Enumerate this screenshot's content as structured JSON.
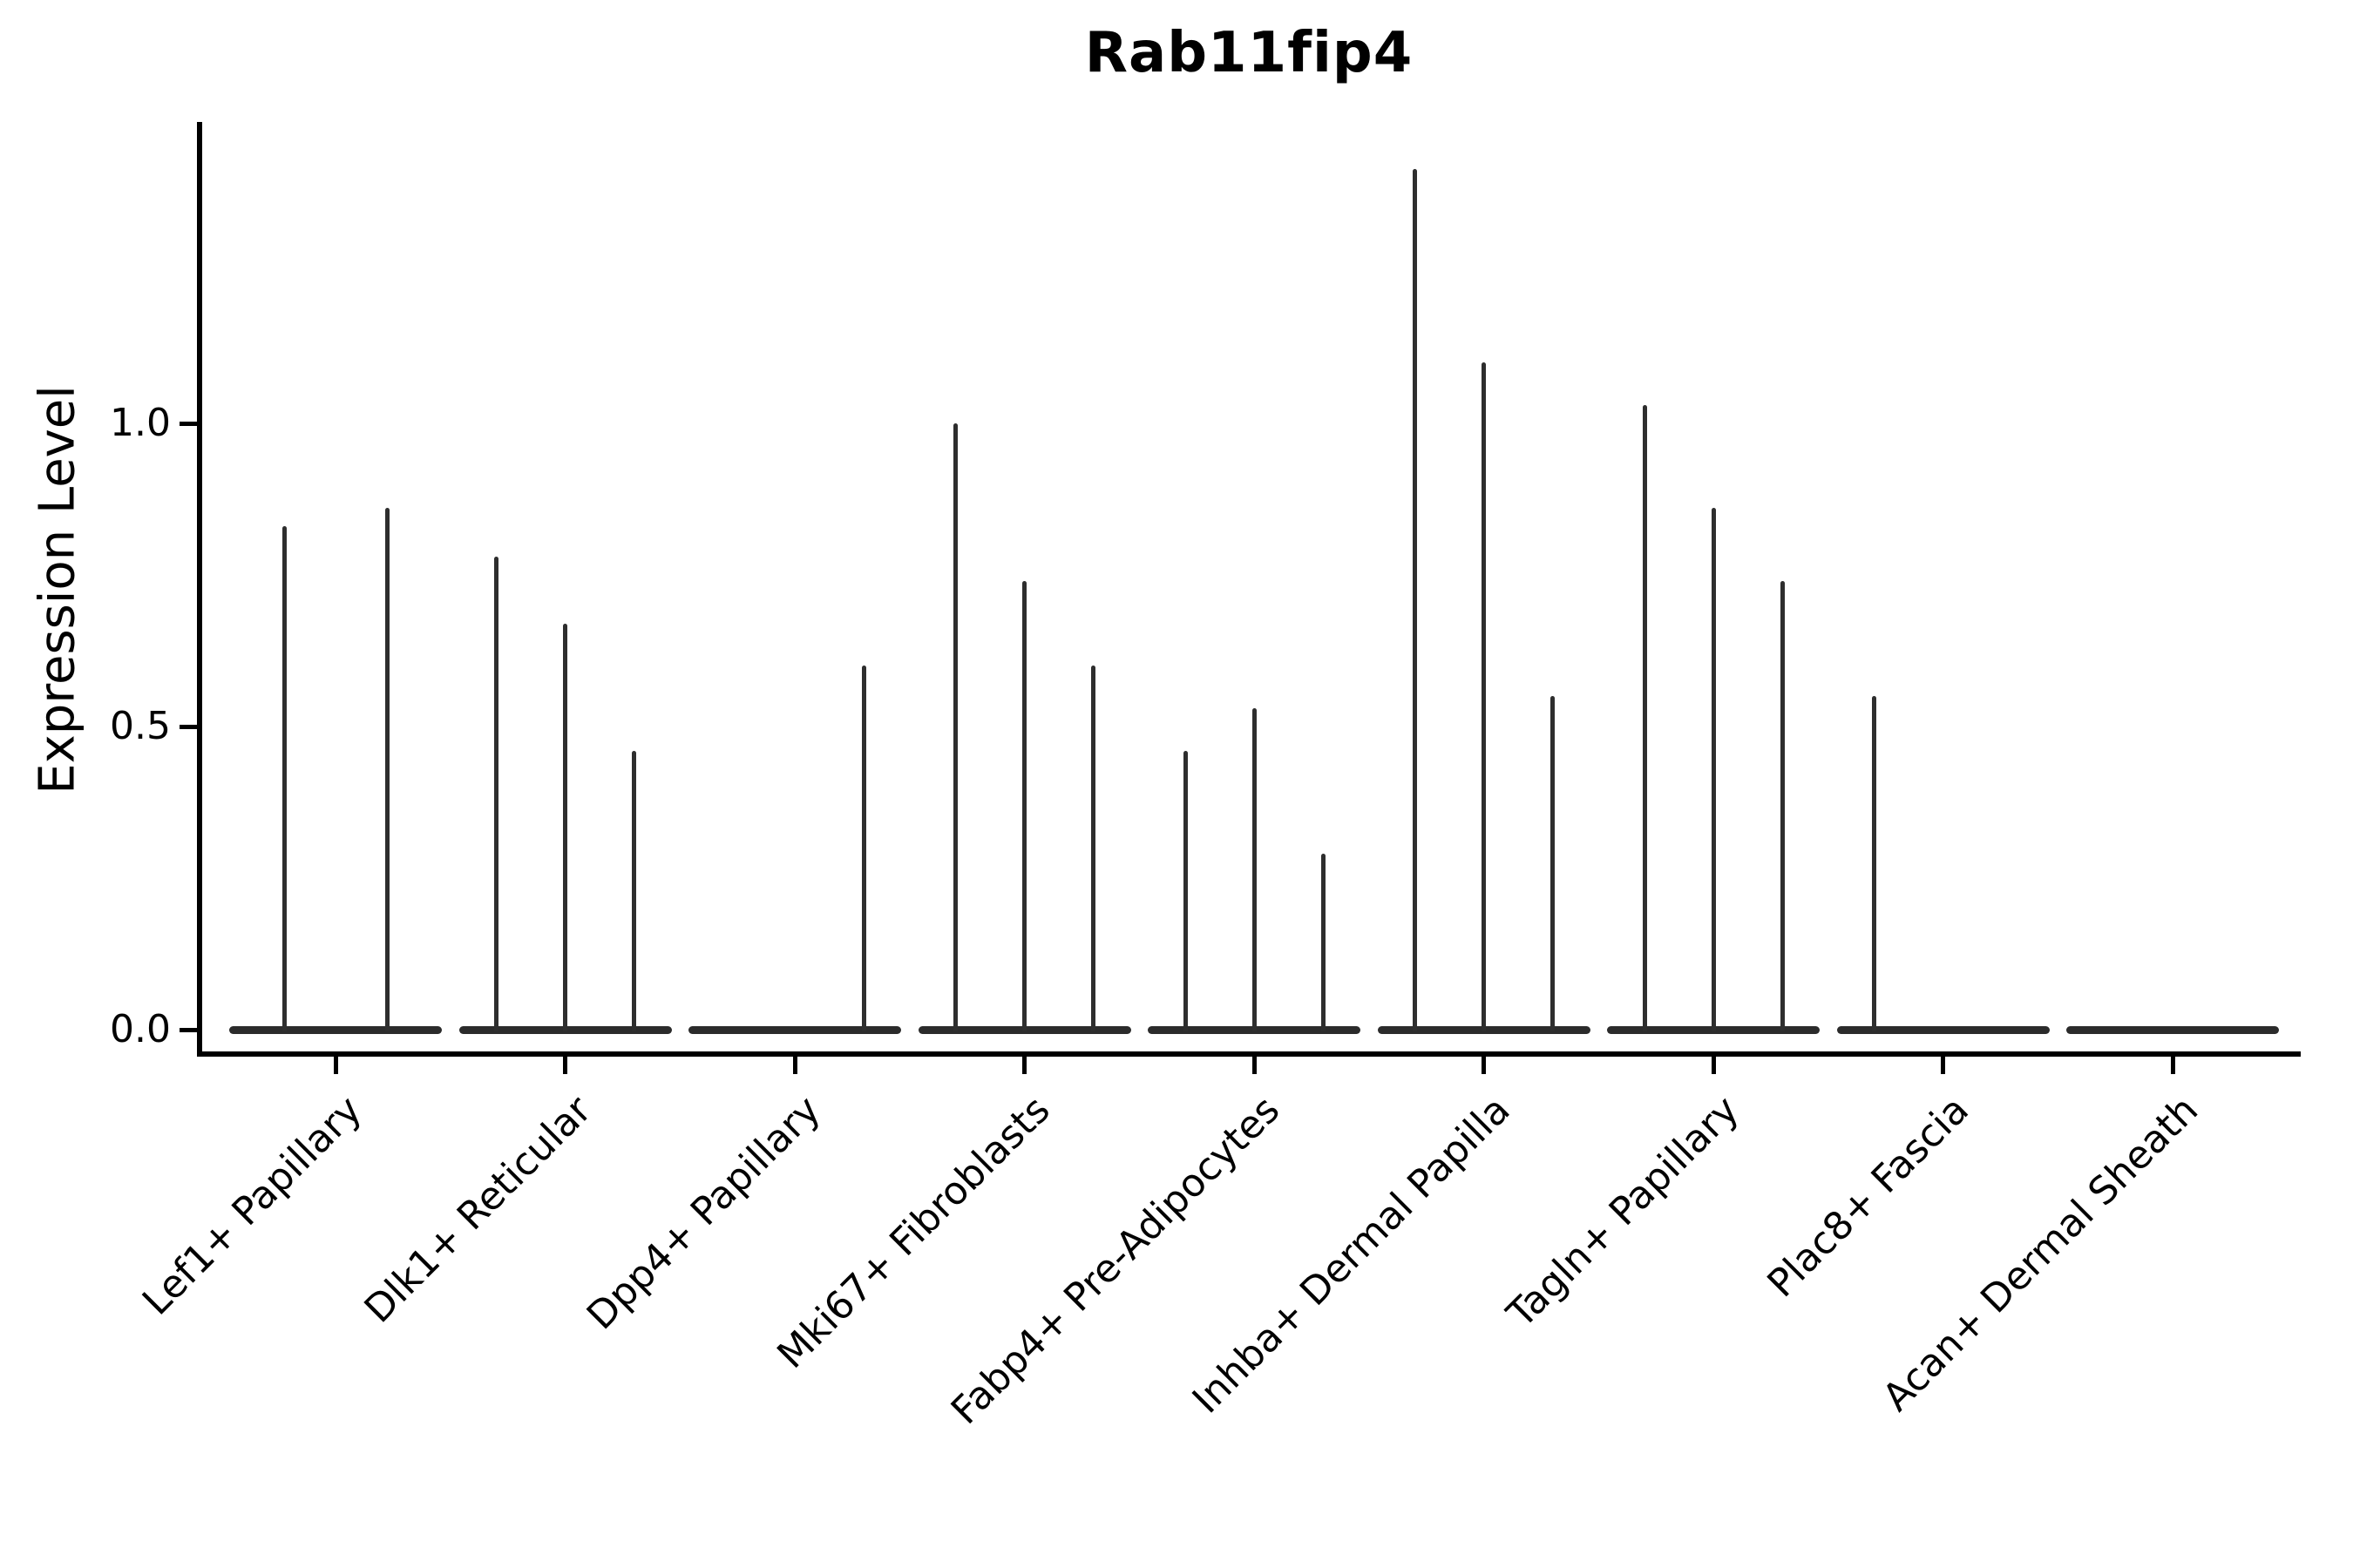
{
  "figure": {
    "background": "#ffffff",
    "text_color": "#000000",
    "violin_color": "#2e2e2e",
    "axis_color": "#000000"
  },
  "chart_data": {
    "type": "violin",
    "title": "Rab11fip4",
    "xlabel": "",
    "ylabel": "Expression Level",
    "ylim": [
      -0.04,
      1.5
    ],
    "grid": false,
    "legend": "none",
    "x_tick_rotation": 45,
    "yticks": [
      {
        "value": 0.0,
        "label": "0.0"
      },
      {
        "value": 0.5,
        "label": "0.5"
      },
      {
        "value": 1.0,
        "label": "1.0"
      }
    ],
    "categories": [
      "Lef1+ Papillary",
      "Dlk1+ Reticular",
      "Dpp4+ Papillary",
      "Mki67+ Fibroblasts",
      "Fabp4+ Pre-Adipocytes",
      "Inhba+ Dermal Papilla",
      "Tagln+ Papillary",
      "Plac8+ Fascia",
      "Acan+ Dermal Sheath"
    ],
    "groups": [
      {
        "category": "Lef1+ Papillary",
        "slots": 2,
        "violins": [
          {
            "pos": 1,
            "peak": 0.83
          },
          {
            "pos": 2,
            "peak": 0.86
          }
        ]
      },
      {
        "category": "Dlk1+ Reticular",
        "slots": 3,
        "violins": [
          {
            "pos": 1,
            "peak": 0.78
          },
          {
            "pos": 2,
            "peak": 0.67
          },
          {
            "pos": 3,
            "peak": 0.46
          }
        ]
      },
      {
        "category": "Dpp4+ Papillary",
        "slots": 3,
        "violins": [
          {
            "pos": 3,
            "peak": 0.6
          }
        ]
      },
      {
        "category": "Mki67+ Fibroblasts",
        "slots": 3,
        "violins": [
          {
            "pos": 1,
            "peak": 1.0
          },
          {
            "pos": 2,
            "peak": 0.74
          },
          {
            "pos": 3,
            "peak": 0.6
          }
        ]
      },
      {
        "category": "Fabp4+ Pre-Adipocytes",
        "slots": 3,
        "violins": [
          {
            "pos": 1,
            "peak": 0.46
          },
          {
            "pos": 2,
            "peak": 0.53
          },
          {
            "pos": 3,
            "peak": 0.29
          }
        ]
      },
      {
        "category": "Inhba+ Dermal Papilla",
        "slots": 3,
        "violins": [
          {
            "pos": 1,
            "peak": 1.42
          },
          {
            "pos": 2,
            "peak": 1.1
          },
          {
            "pos": 3,
            "peak": 0.55
          }
        ]
      },
      {
        "category": "Tagln+ Papillary",
        "slots": 3,
        "violins": [
          {
            "pos": 1,
            "peak": 1.03
          },
          {
            "pos": 2,
            "peak": 0.86
          },
          {
            "pos": 3,
            "peak": 0.74
          }
        ]
      },
      {
        "category": "Plac8+ Fascia",
        "slots": 3,
        "violins": [
          {
            "pos": 1,
            "peak": 0.55
          }
        ]
      },
      {
        "category": "Acan+ Dermal Sheath",
        "slots": 3,
        "violins": []
      }
    ]
  }
}
